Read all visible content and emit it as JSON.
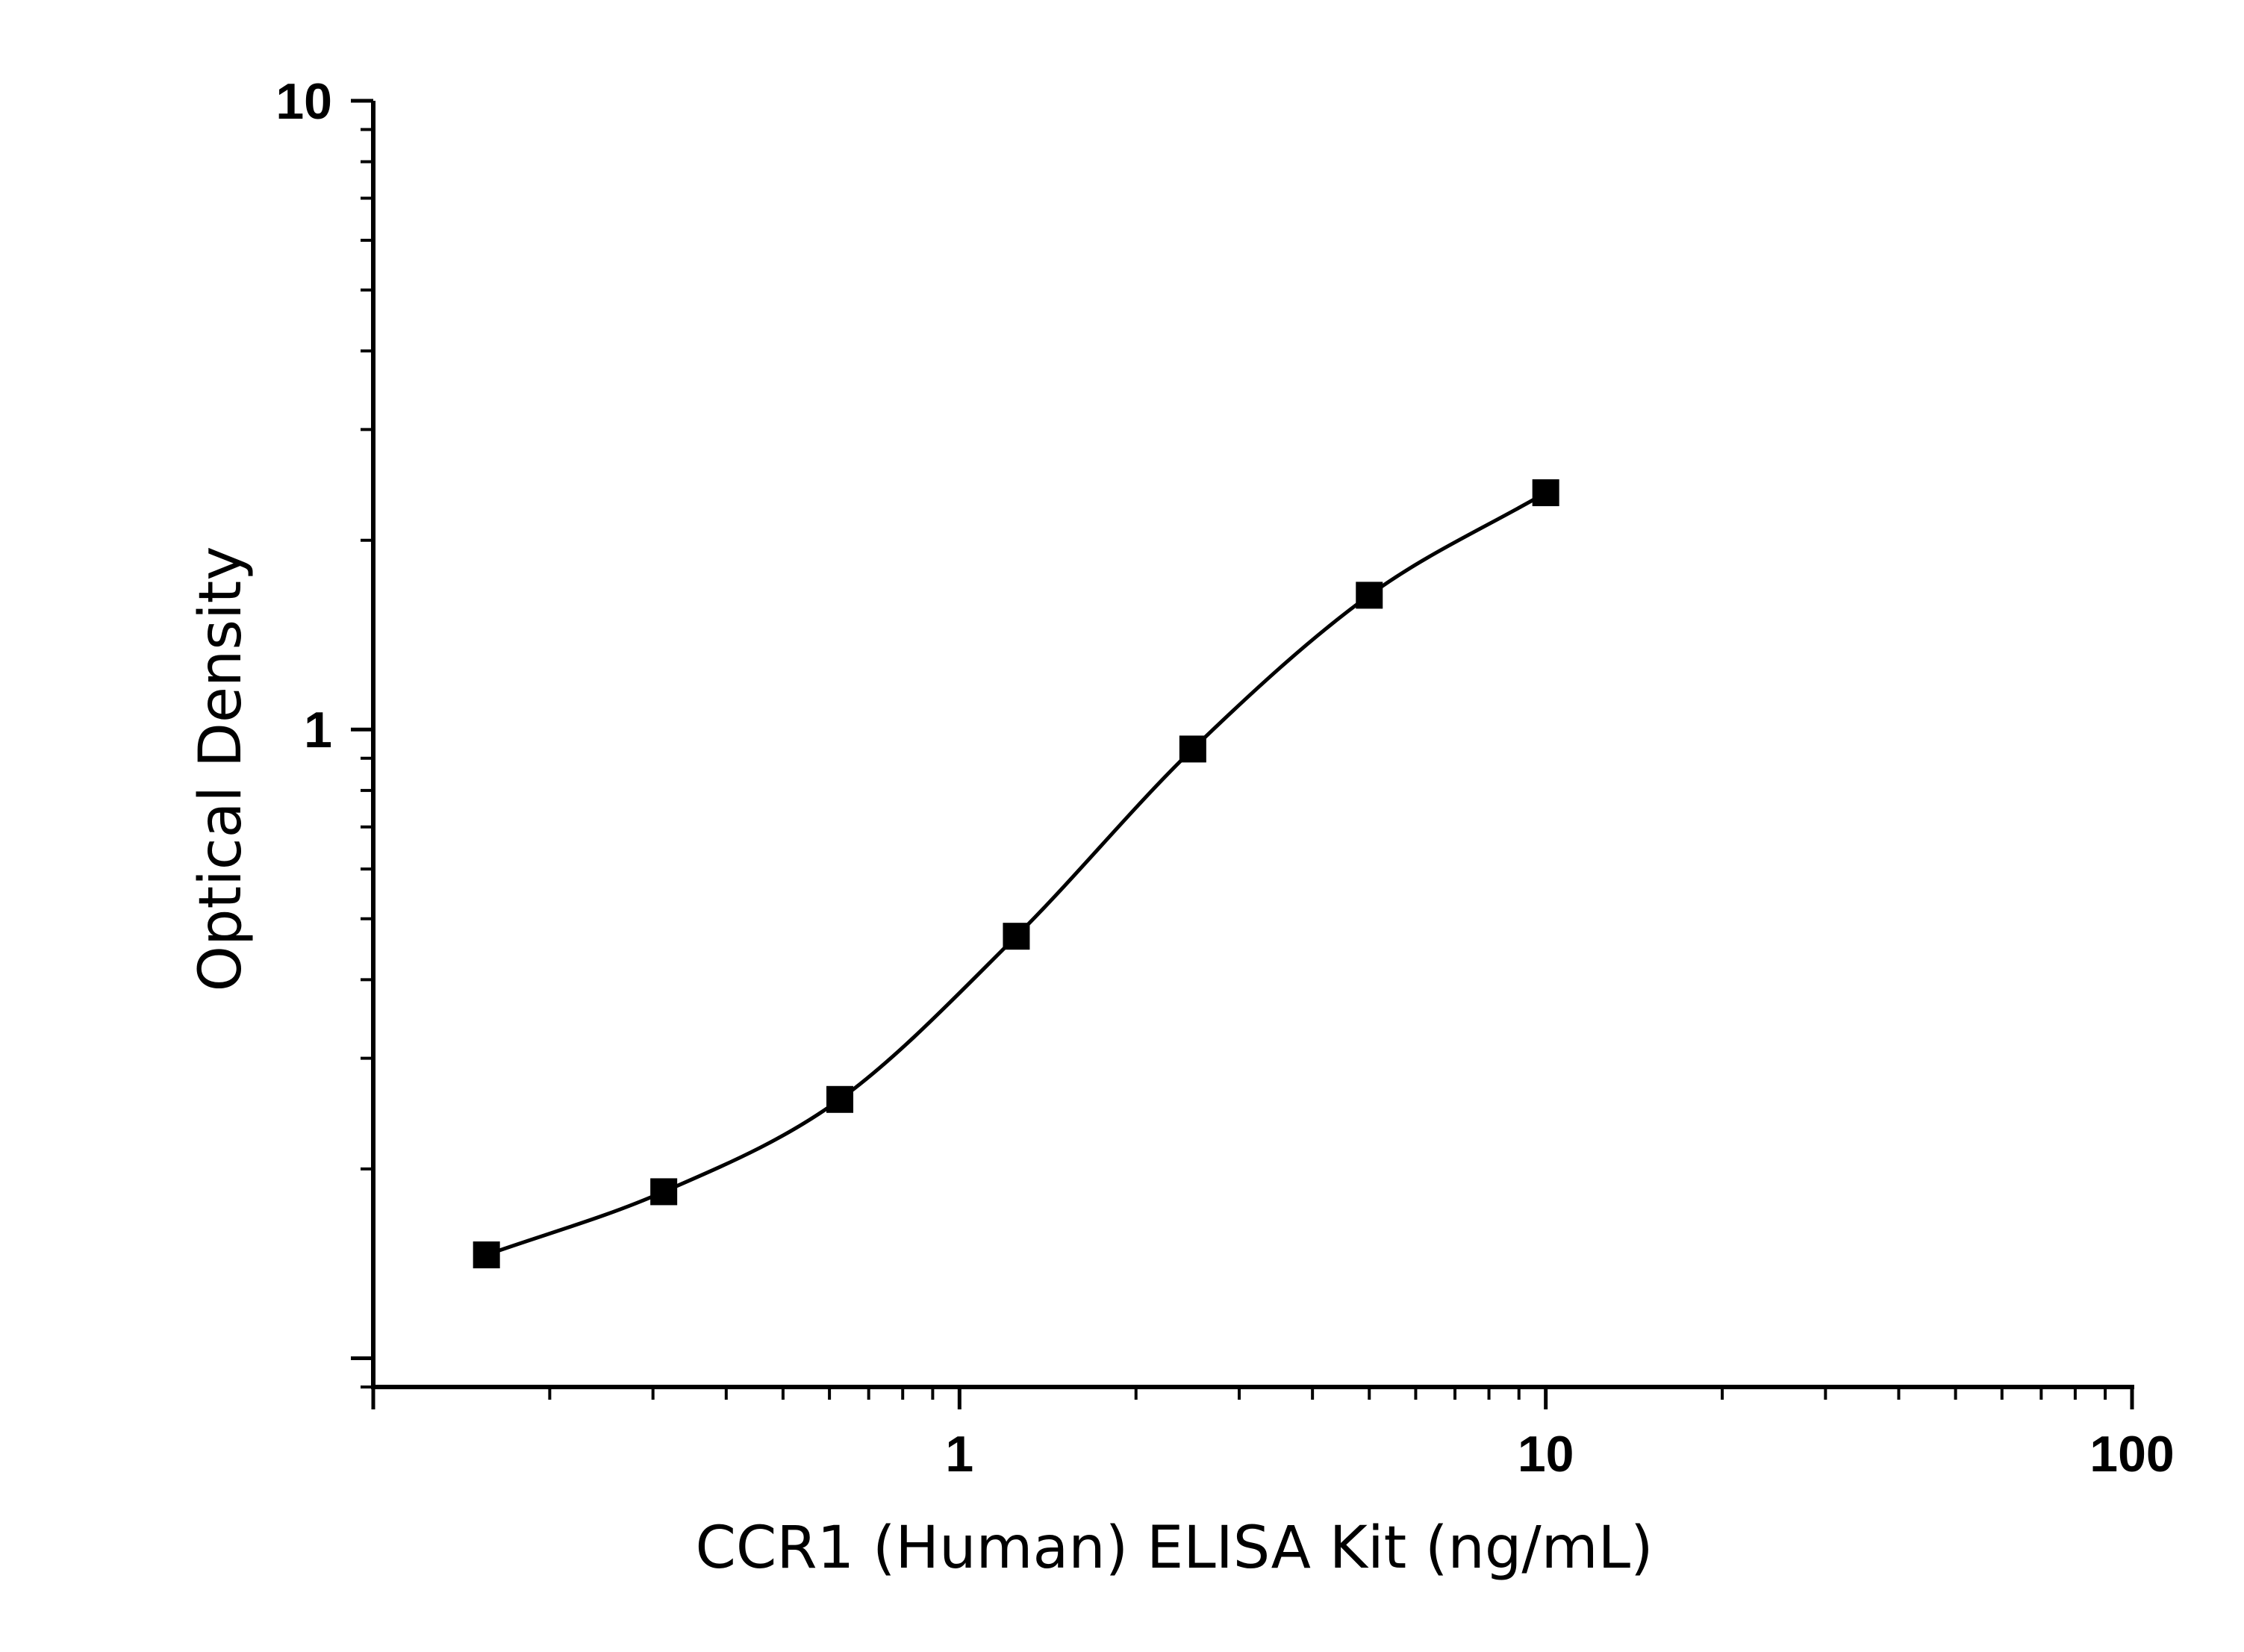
{
  "chart_data": {
    "type": "line",
    "title": "",
    "xlabel": "CCR1 (Human) ELISA Kit (ng/mL)",
    "ylabel": "Optical Density",
    "x_scale": "log",
    "y_scale": "log",
    "xlim": [
      0.1,
      100
    ],
    "ylim": [
      0.09,
      10
    ],
    "x_ticks": [
      {
        "value": 1,
        "label": "1"
      },
      {
        "value": 10,
        "label": "10"
      },
      {
        "value": 100,
        "label": "100"
      }
    ],
    "y_ticks": [
      {
        "value": 1,
        "label": "1"
      },
      {
        "value": 10,
        "label": "10"
      }
    ],
    "grid": false,
    "legend": "none",
    "series": [
      {
        "x": [
          0.156,
          0.313,
          0.625,
          1.25,
          2.5,
          5,
          10
        ],
        "y": [
          0.146,
          0.184,
          0.258,
          0.469,
          0.931,
          1.635,
          2.38
        ],
        "marker": "square",
        "color": "#000000",
        "fit": "4PL"
      }
    ]
  }
}
